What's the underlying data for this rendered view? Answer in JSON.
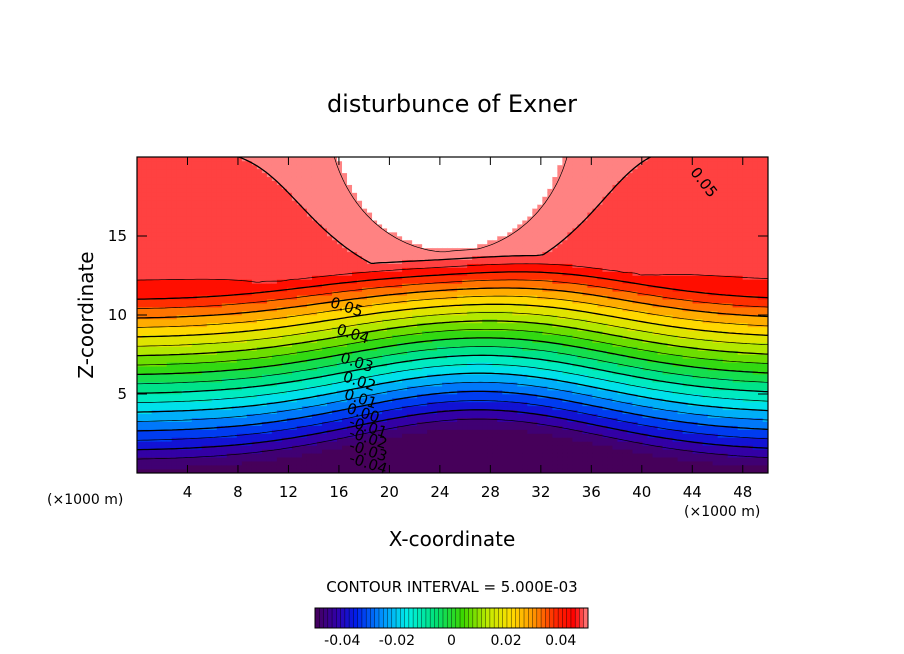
{
  "chart_data": {
    "type": "contour",
    "title": "disturbunce of Exner",
    "xlabel": "X-coordinate",
    "ylabel": "Z-coordinate",
    "x_unit": "(×1000 m)",
    "y_unit": "(×1000 m)",
    "xlim": [
      0,
      50
    ],
    "ylim": [
      0,
      20
    ],
    "x_ticks": [
      4,
      8,
      12,
      16,
      20,
      24,
      28,
      32,
      36,
      40,
      44,
      48
    ],
    "y_ticks": [
      5,
      10,
      15
    ],
    "contour_interval_text": "CONTOUR INTERVAL = 5.000E-03",
    "contour_interval": 0.005,
    "level_range": [
      -0.045,
      0.055
    ],
    "contour_labels": [
      {
        "text": "0.05",
        "x": 16.5,
        "z": 10.2
      },
      {
        "text": "0.04",
        "x": 17.0,
        "z": 8.5
      },
      {
        "text": "0.03",
        "x": 17.3,
        "z": 6.7
      },
      {
        "text": "0.02",
        "x": 17.5,
        "z": 5.5
      },
      {
        "text": "0.01",
        "x": 17.6,
        "z": 4.4
      },
      {
        "text": "0.00",
        "x": 17.8,
        "z": 3.5
      },
      {
        "text": "-0.01",
        "x": 18.2,
        "z": 2.6
      },
      {
        "text": "-0.02",
        "x": 18.2,
        "z": 1.9
      },
      {
        "text": "-0.03",
        "x": 18.2,
        "z": 1.1
      },
      {
        "text": "-0.04",
        "x": 18.2,
        "z": 0.3
      },
      {
        "text": "0.05",
        "x": 44.6,
        "z": 18.2
      }
    ],
    "colorbar": {
      "range": [
        -0.05,
        0.05
      ],
      "ticks": [
        {
          "value": -0.04,
          "label": "-0.04"
        },
        {
          "value": -0.02,
          "label": "-0.02"
        },
        {
          "value": 0,
          "label": "0"
        },
        {
          "value": 0.02,
          "label": "0.02"
        },
        {
          "value": 0.04,
          "label": "0.04"
        }
      ]
    }
  }
}
